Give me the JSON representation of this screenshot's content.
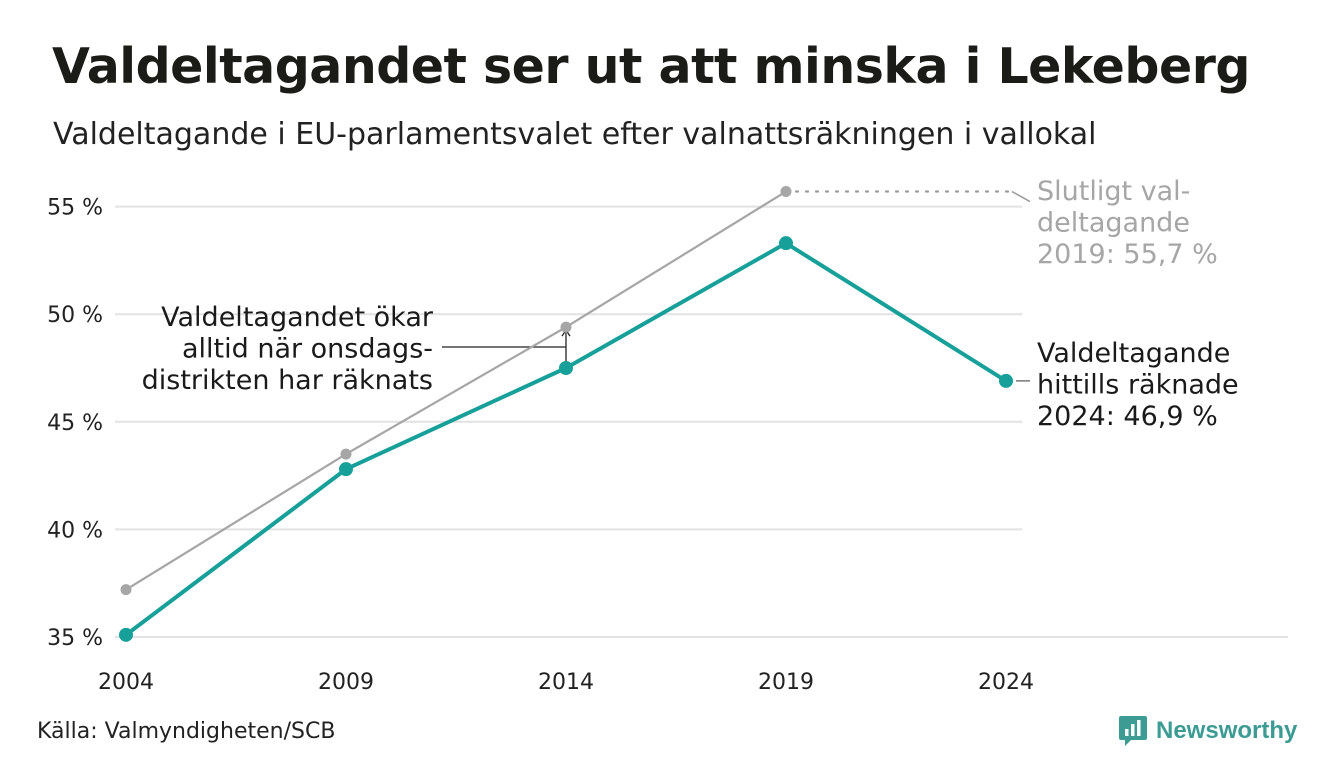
{
  "header": {
    "title": "Valdeltagandet ser ut att minska i Lekeberg",
    "subtitle": "Valdeltagande i EU-parlamentsvalet efter valnattsräkningen i vallokal"
  },
  "footer": {
    "source": "Källa: Valmyndigheten/SCB",
    "brand_name": "Newsworthy",
    "brand_icon": "newsworthy-logo-icon",
    "brand_color": "#3c9c94"
  },
  "chart_data": {
    "type": "line",
    "x": [
      "2004",
      "2009",
      "2014",
      "2019",
      "2024"
    ],
    "ylim": [
      35,
      55.8
    ],
    "yticks": [
      35,
      40,
      45,
      50,
      55
    ],
    "ytick_labels": [
      "35 %",
      "40 %",
      "45 %",
      "50 %",
      "55 %"
    ],
    "grid": true,
    "series": [
      {
        "key": "slutligt",
        "values": [
          37.2,
          43.5,
          49.4,
          55.7,
          null
        ],
        "color": "#a6a6a6"
      },
      {
        "key": "valnatt",
        "values": [
          35.1,
          42.8,
          47.5,
          53.3,
          46.9
        ],
        "color": "#16a099"
      }
    ],
    "annotations": {
      "final": {
        "lines": [
          "Slutligt val-",
          "deltagande",
          "2019: 55,7 %"
        ],
        "color": "#a6a6a6"
      },
      "current": {
        "lines": [
          "Valdeltagande",
          "hittills räknade",
          "2024: 46,9 %"
        ],
        "color": "#1a1a1a"
      },
      "note": {
        "lines": [
          "Valdeltagandet ökar",
          "alltid när onsdags-",
          "distrikten har räknats"
        ],
        "color": "#1a1a1a"
      }
    }
  }
}
